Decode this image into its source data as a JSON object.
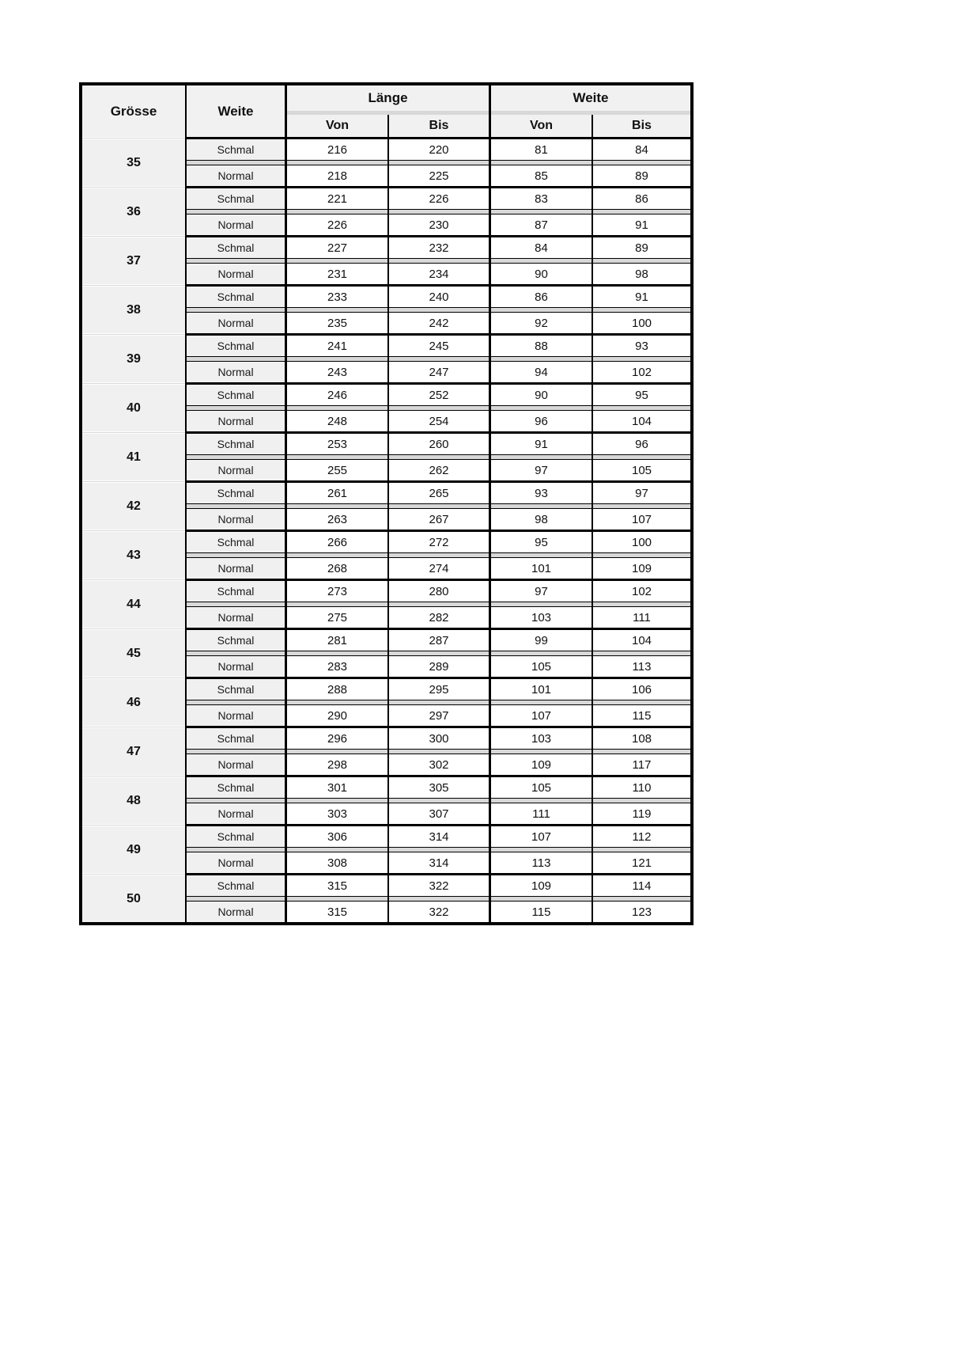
{
  "table": {
    "header": {
      "groesse": "Grösse",
      "weite_col": "Weite",
      "laenge_group": "Länge",
      "weite_group": "Weite",
      "von": "Von",
      "bis": "Bis"
    },
    "row_labels": {
      "schmal": "Schmal",
      "normal": "Normal"
    },
    "colors": {
      "header_bg": "#f1f1f1",
      "label_bg": "#f0f0f0",
      "cell_bg": "#ffffff",
      "separator_gray": "#d8d8d8",
      "border_black": "#000000"
    },
    "groups": [
      {
        "size": "35",
        "schmal": [
          "216",
          "220",
          "81",
          "84"
        ],
        "normal": [
          "218",
          "225",
          "85",
          "89"
        ]
      },
      {
        "size": "36",
        "schmal": [
          "221",
          "226",
          "83",
          "86"
        ],
        "normal": [
          "226",
          "230",
          "87",
          "91"
        ]
      },
      {
        "size": "37",
        "schmal": [
          "227",
          "232",
          "84",
          "89"
        ],
        "normal": [
          "231",
          "234",
          "90",
          "98"
        ]
      },
      {
        "size": "38",
        "schmal": [
          "233",
          "240",
          "86",
          "91"
        ],
        "normal": [
          "235",
          "242",
          "92",
          "100"
        ]
      },
      {
        "size": "39",
        "schmal": [
          "241",
          "245",
          "88",
          "93"
        ],
        "normal": [
          "243",
          "247",
          "94",
          "102"
        ]
      },
      {
        "size": "40",
        "schmal": [
          "246",
          "252",
          "90",
          "95"
        ],
        "normal": [
          "248",
          "254",
          "96",
          "104"
        ]
      },
      {
        "size": "41",
        "schmal": [
          "253",
          "260",
          "91",
          "96"
        ],
        "normal": [
          "255",
          "262",
          "97",
          "105"
        ]
      },
      {
        "size": "42",
        "schmal": [
          "261",
          "265",
          "93",
          "97"
        ],
        "normal": [
          "263",
          "267",
          "98",
          "107"
        ]
      },
      {
        "size": "43",
        "schmal": [
          "266",
          "272",
          "95",
          "100"
        ],
        "normal": [
          "268",
          "274",
          "101",
          "109"
        ]
      },
      {
        "size": "44",
        "schmal": [
          "273",
          "280",
          "97",
          "102"
        ],
        "normal": [
          "275",
          "282",
          "103",
          "111"
        ]
      },
      {
        "size": "45",
        "schmal": [
          "281",
          "287",
          "99",
          "104"
        ],
        "normal": [
          "283",
          "289",
          "105",
          "113"
        ]
      },
      {
        "size": "46",
        "schmal": [
          "288",
          "295",
          "101",
          "106"
        ],
        "normal": [
          "290",
          "297",
          "107",
          "115"
        ]
      },
      {
        "size": "47",
        "schmal": [
          "296",
          "300",
          "103",
          "108"
        ],
        "normal": [
          "298",
          "302",
          "109",
          "117"
        ]
      },
      {
        "size": "48",
        "schmal": [
          "301",
          "305",
          "105",
          "110"
        ],
        "normal": [
          "303",
          "307",
          "111",
          "119"
        ]
      },
      {
        "size": "49",
        "schmal": [
          "306",
          "314",
          "107",
          "112"
        ],
        "normal": [
          "308",
          "314",
          "113",
          "121"
        ]
      },
      {
        "size": "50",
        "schmal": [
          "315",
          "322",
          "109",
          "114"
        ],
        "normal": [
          "315",
          "322",
          "115",
          "123"
        ]
      }
    ]
  }
}
